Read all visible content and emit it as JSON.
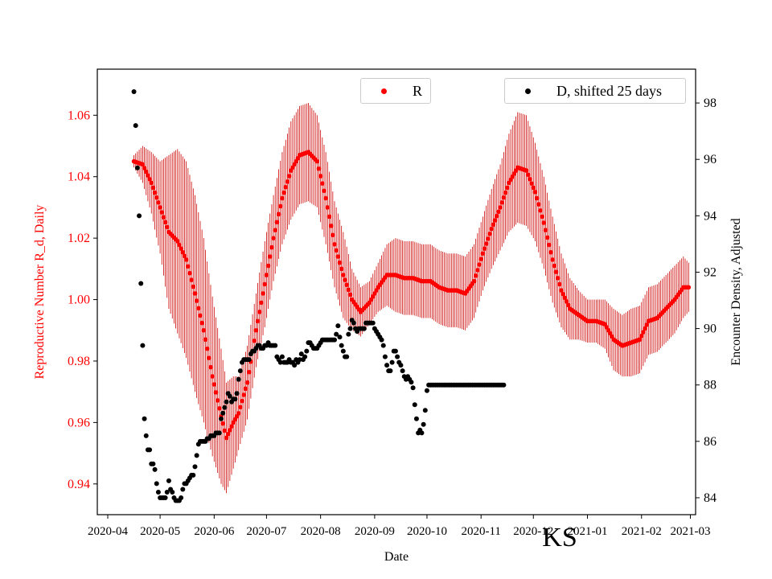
{
  "chart_data": {
    "type": "scatter",
    "xlabel": "Date",
    "ylabel_left": "Reproductive Number R_d, Daily",
    "ylabel_right": "Encounter Density, Adjusted",
    "state_label": "KS",
    "x_ticks": [
      "2020-04",
      "2020-05",
      "2020-06",
      "2020-07",
      "2020-08",
      "2020-09",
      "2020-10",
      "2020-11",
      "2020-12",
      "2021-01",
      "2021-02",
      "2021-03"
    ],
    "y_left_ticks": [
      "0.94",
      "0.96",
      "0.98",
      "1.00",
      "1.02",
      "1.04",
      "1.06"
    ],
    "y_right_ticks": [
      "84",
      "86",
      "88",
      "90",
      "92",
      "94",
      "96",
      "98"
    ],
    "y_left_range": [
      0.93,
      1.075
    ],
    "y_right_range": [
      83.4,
      99.2
    ],
    "x_range_days": [
      -6,
      337
    ],
    "x_origin_date": "2020-04-01",
    "legend": [
      {
        "label": "R",
        "color": "#ff0000"
      },
      {
        "label": "D, shifted 25 days",
        "color": "#000000"
      }
    ],
    "colors": {
      "r_series": "#ff0000",
      "r_errorbar": "#cc0000",
      "d_series": "#000000",
      "left_axis_text": "#ff0000"
    },
    "series": [
      {
        "name": "R",
        "axis": "left",
        "keyframes_day_value_err": [
          [
            15,
            1.045,
            0.002
          ],
          [
            20,
            1.044,
            0.006
          ],
          [
            25,
            1.038,
            0.01
          ],
          [
            30,
            1.03,
            0.015
          ],
          [
            35,
            1.022,
            0.025
          ],
          [
            40,
            1.019,
            0.03
          ],
          [
            45,
            1.013,
            0.032
          ],
          [
            50,
            1.002,
            0.032
          ],
          [
            55,
            0.99,
            0.03
          ],
          [
            60,
            0.975,
            0.026
          ],
          [
            65,
            0.962,
            0.022
          ],
          [
            68,
            0.955,
            0.018
          ],
          [
            72,
            0.96,
            0.015
          ],
          [
            75,
            0.963,
            0.012
          ],
          [
            80,
            0.973,
            0.012
          ],
          [
            85,
            0.99,
            0.012
          ],
          [
            90,
            1.005,
            0.014
          ],
          [
            95,
            1.02,
            0.014
          ],
          [
            100,
            1.033,
            0.015
          ],
          [
            105,
            1.042,
            0.016
          ],
          [
            110,
            1.047,
            0.016
          ],
          [
            115,
            1.048,
            0.016
          ],
          [
            120,
            1.045,
            0.015
          ],
          [
            125,
            1.033,
            0.015
          ],
          [
            130,
            1.018,
            0.014
          ],
          [
            135,
            1.008,
            0.014
          ],
          [
            140,
            1.0,
            0.01
          ],
          [
            145,
            0.996,
            0.008
          ],
          [
            150,
            0.999,
            0.007
          ],
          [
            155,
            1.004,
            0.008
          ],
          [
            160,
            1.008,
            0.01
          ],
          [
            165,
            1.008,
            0.012
          ],
          [
            170,
            1.007,
            0.012
          ],
          [
            175,
            1.007,
            0.012
          ],
          [
            180,
            1.006,
            0.012
          ],
          [
            185,
            1.006,
            0.012
          ],
          [
            190,
            1.004,
            0.012
          ],
          [
            195,
            1.003,
            0.012
          ],
          [
            200,
            1.003,
            0.012
          ],
          [
            205,
            1.002,
            0.012
          ],
          [
            210,
            1.006,
            0.012
          ],
          [
            215,
            1.015,
            0.012
          ],
          [
            220,
            1.023,
            0.013
          ],
          [
            225,
            1.03,
            0.014
          ],
          [
            230,
            1.038,
            0.016
          ],
          [
            235,
            1.043,
            0.018
          ],
          [
            240,
            1.042,
            0.018
          ],
          [
            245,
            1.035,
            0.016
          ],
          [
            250,
            1.025,
            0.015
          ],
          [
            255,
            1.013,
            0.014
          ],
          [
            260,
            1.003,
            0.012
          ],
          [
            265,
            0.997,
            0.01
          ],
          [
            270,
            0.995,
            0.008
          ],
          [
            275,
            0.993,
            0.007
          ],
          [
            280,
            0.993,
            0.007
          ],
          [
            285,
            0.992,
            0.008
          ],
          [
            290,
            0.987,
            0.01
          ],
          [
            295,
            0.985,
            0.01
          ],
          [
            300,
            0.986,
            0.011
          ],
          [
            305,
            0.987,
            0.011
          ],
          [
            310,
            0.993,
            0.011
          ],
          [
            315,
            0.994,
            0.011
          ],
          [
            320,
            0.997,
            0.011
          ],
          [
            325,
            1.0,
            0.011
          ],
          [
            330,
            1.004,
            0.01
          ],
          [
            333,
            1.004,
            0.008
          ]
        ]
      },
      {
        "name": "D, shifted 25 days",
        "axis": "right",
        "points_day_value": [
          [
            15,
            98.4
          ],
          [
            16,
            97.2
          ],
          [
            17,
            95.7
          ],
          [
            18,
            94.0
          ],
          [
            19,
            91.6
          ],
          [
            20,
            89.4
          ],
          [
            21,
            86.8
          ],
          [
            22,
            86.2
          ],
          [
            23,
            85.7
          ],
          [
            24,
            85.7
          ],
          [
            25,
            85.2
          ],
          [
            26,
            85.2
          ],
          [
            27,
            85.0
          ],
          [
            28,
            84.5
          ],
          [
            29,
            84.2
          ],
          [
            30,
            84.0
          ],
          [
            31,
            84.0
          ],
          [
            32,
            84.0
          ],
          [
            33,
            84.0
          ],
          [
            34,
            84.2
          ],
          [
            35,
            84.6
          ],
          [
            36,
            84.3
          ],
          [
            37,
            84.2
          ],
          [
            38,
            84.0
          ],
          [
            39,
            83.9
          ],
          [
            40,
            83.9
          ],
          [
            41,
            83.9
          ],
          [
            42,
            84.0
          ],
          [
            43,
            84.3
          ],
          [
            44,
            84.5
          ],
          [
            45,
            84.5
          ],
          [
            46,
            84.6
          ],
          [
            47,
            84.7
          ],
          [
            48,
            84.8
          ],
          [
            49,
            84.8
          ],
          [
            50,
            85.1
          ],
          [
            51,
            85.5
          ],
          [
            52,
            85.9
          ],
          [
            53,
            86.0
          ],
          [
            54,
            86.0
          ],
          [
            55,
            86.0
          ],
          [
            56,
            86.0
          ],
          [
            57,
            86.1
          ],
          [
            58,
            86.1
          ],
          [
            59,
            86.2
          ],
          [
            60,
            86.2
          ],
          [
            61,
            86.2
          ],
          [
            62,
            86.3
          ],
          [
            63,
            86.3
          ],
          [
            64,
            86.3
          ],
          [
            65,
            86.8
          ],
          [
            66,
            87.0
          ],
          [
            67,
            87.2
          ],
          [
            68,
            87.4
          ],
          [
            69,
            87.7
          ],
          [
            70,
            87.6
          ],
          [
            71,
            87.4
          ],
          [
            72,
            87.5
          ],
          [
            73,
            87.5
          ],
          [
            74,
            87.7
          ],
          [
            75,
            88.2
          ],
          [
            76,
            88.5
          ],
          [
            77,
            88.8
          ],
          [
            78,
            88.9
          ],
          [
            79,
            88.9
          ],
          [
            80,
            88.9
          ],
          [
            81,
            88.9
          ],
          [
            82,
            89.1
          ],
          [
            83,
            89.2
          ],
          [
            84,
            89.2
          ],
          [
            85,
            89.3
          ],
          [
            86,
            89.4
          ],
          [
            87,
            89.4
          ],
          [
            88,
            89.3
          ],
          [
            89,
            89.3
          ],
          [
            90,
            89.4
          ],
          [
            91,
            89.4
          ],
          [
            92,
            89.5
          ],
          [
            93,
            89.4
          ],
          [
            94,
            89.4
          ],
          [
            95,
            89.4
          ],
          [
            96,
            89.4
          ],
          [
            97,
            89.0
          ],
          [
            98,
            88.9
          ],
          [
            99,
            88.8
          ],
          [
            100,
            89.0
          ],
          [
            101,
            88.8
          ],
          [
            102,
            88.8
          ],
          [
            103,
            88.8
          ],
          [
            104,
            88.9
          ],
          [
            105,
            88.8
          ],
          [
            106,
            88.8
          ],
          [
            107,
            88.7
          ],
          [
            108,
            88.9
          ],
          [
            109,
            88.8
          ],
          [
            110,
            88.9
          ],
          [
            111,
            89.1
          ],
          [
            112,
            88.9
          ],
          [
            113,
            89.0
          ],
          [
            114,
            89.2
          ],
          [
            115,
            89.5
          ],
          [
            116,
            89.5
          ],
          [
            117,
            89.4
          ],
          [
            118,
            89.3
          ],
          [
            119,
            89.3
          ],
          [
            120,
            89.3
          ],
          [
            121,
            89.4
          ],
          [
            122,
            89.5
          ],
          [
            123,
            89.6
          ],
          [
            124,
            89.6
          ],
          [
            125,
            89.6
          ],
          [
            126,
            89.6
          ],
          [
            127,
            89.6
          ],
          [
            128,
            89.6
          ],
          [
            129,
            89.6
          ],
          [
            130,
            89.6
          ],
          [
            131,
            89.8
          ],
          [
            132,
            90.1
          ],
          [
            133,
            89.7
          ],
          [
            134,
            89.4
          ],
          [
            135,
            89.2
          ],
          [
            136,
            89.0
          ],
          [
            137,
            89.0
          ],
          [
            138,
            89.8
          ],
          [
            139,
            90.0
          ],
          [
            140,
            90.3
          ],
          [
            141,
            90.2
          ],
          [
            142,
            90.0
          ],
          [
            143,
            89.9
          ],
          [
            144,
            90.0
          ],
          [
            145,
            90.0
          ],
          [
            146,
            90.0
          ],
          [
            147,
            90.0
          ],
          [
            148,
            90.2
          ],
          [
            149,
            90.2
          ],
          [
            150,
            90.2
          ],
          [
            151,
            90.2
          ],
          [
            152,
            90.2
          ],
          [
            153,
            90.0
          ],
          [
            154,
            89.9
          ],
          [
            155,
            89.8
          ],
          [
            156,
            89.7
          ],
          [
            157,
            89.6
          ],
          [
            158,
            89.4
          ],
          [
            159,
            89.0
          ],
          [
            160,
            88.7
          ],
          [
            161,
            88.5
          ],
          [
            162,
            88.5
          ],
          [
            163,
            88.8
          ],
          [
            164,
            89.2
          ],
          [
            165,
            89.2
          ],
          [
            166,
            89.0
          ],
          [
            167,
            88.8
          ],
          [
            168,
            88.7
          ],
          [
            169,
            88.5
          ],
          [
            170,
            88.3
          ],
          [
            171,
            88.2
          ],
          [
            172,
            88.3
          ],
          [
            173,
            88.2
          ],
          [
            174,
            88.1
          ],
          [
            175,
            87.9
          ],
          [
            176,
            87.3
          ],
          [
            177,
            86.8
          ],
          [
            178,
            86.3
          ],
          [
            179,
            86.4
          ],
          [
            180,
            86.3
          ],
          [
            181,
            86.6
          ],
          [
            182,
            87.1
          ],
          [
            183,
            87.8
          ],
          [
            184,
            88.0
          ],
          [
            185,
            88.0
          ],
          [
            186,
            88.0
          ],
          [
            187,
            88.0
          ],
          [
            188,
            88.0
          ],
          [
            189,
            88.0
          ],
          [
            190,
            88.0
          ],
          [
            191,
            88.0
          ],
          [
            192,
            88.0
          ],
          [
            193,
            88.0
          ],
          [
            194,
            88.0
          ],
          [
            195,
            88.0
          ],
          [
            196,
            88.0
          ],
          [
            197,
            88.0
          ],
          [
            198,
            88.0
          ],
          [
            199,
            88.0
          ],
          [
            200,
            88.0
          ],
          [
            201,
            88.0
          ],
          [
            202,
            88.0
          ],
          [
            203,
            88.0
          ],
          [
            204,
            88.0
          ],
          [
            205,
            88.0
          ],
          [
            206,
            88.0
          ],
          [
            207,
            88.0
          ],
          [
            208,
            88.0
          ],
          [
            209,
            88.0
          ],
          [
            210,
            88.0
          ],
          [
            211,
            88.0
          ],
          [
            212,
            88.0
          ],
          [
            213,
            88.0
          ],
          [
            214,
            88.0
          ],
          [
            215,
            88.0
          ],
          [
            216,
            88.0
          ],
          [
            217,
            88.0
          ],
          [
            218,
            88.0
          ],
          [
            219,
            88.0
          ],
          [
            220,
            88.0
          ],
          [
            221,
            88.0
          ],
          [
            222,
            88.0
          ],
          [
            223,
            88.0
          ],
          [
            224,
            88.0
          ],
          [
            225,
            88.0
          ],
          [
            226,
            88.0
          ],
          [
            227,
            88.0
          ]
        ]
      }
    ]
  }
}
